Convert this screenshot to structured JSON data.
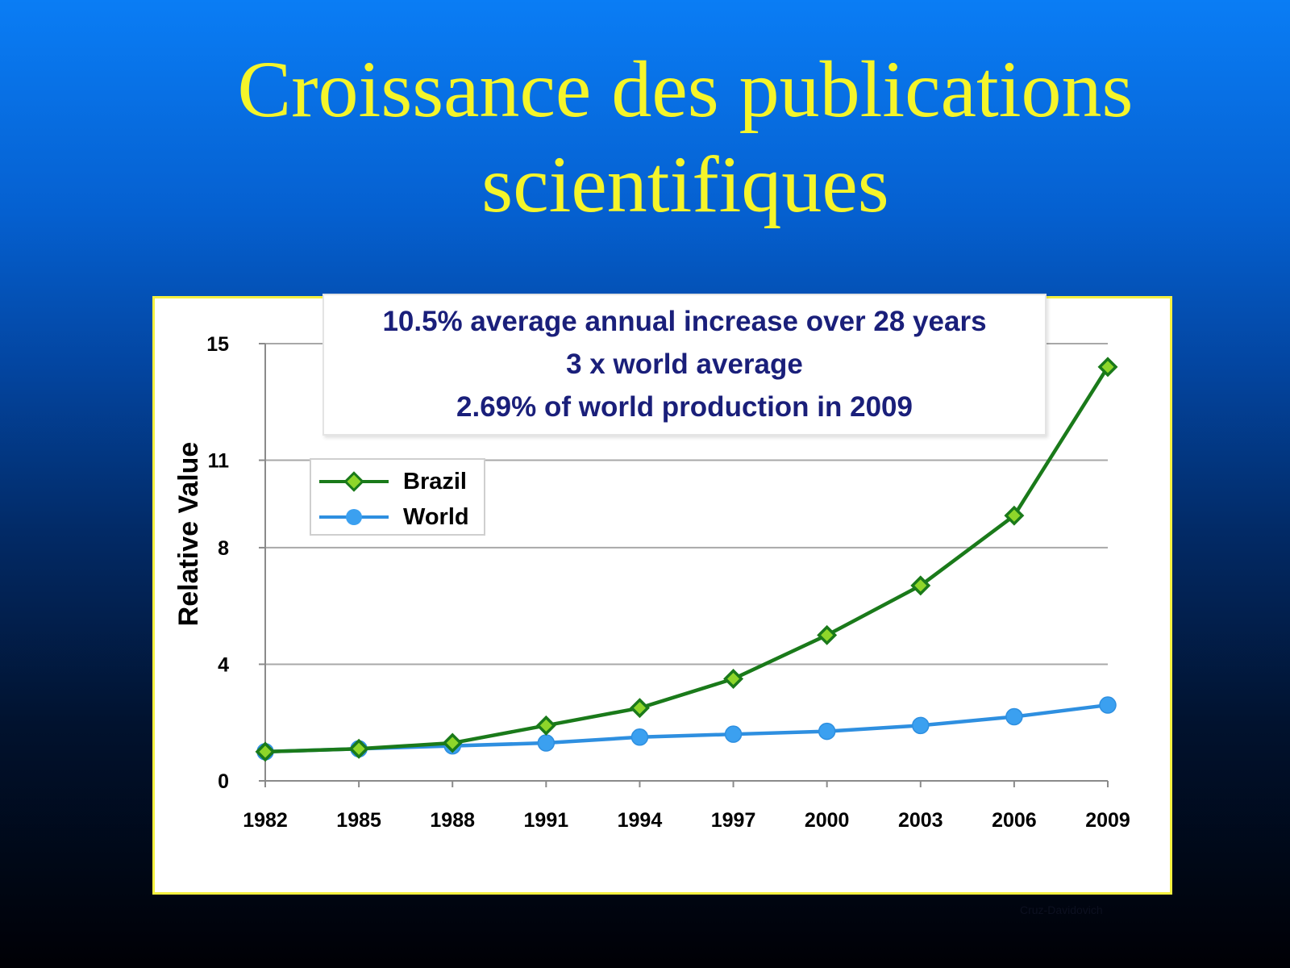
{
  "slide": {
    "title_line1": "Croissance des publications",
    "title_line2": "scientifiques",
    "credit": "Cruz-Davidovich"
  },
  "annotation": {
    "line1": "10.5% average annual increase over 28 years",
    "line2": "3 x world average",
    "line3": "2.69% of world production in 2009"
  },
  "colors": {
    "brazil_line": "#1a7a1a",
    "brazil_marker": "#8ed62a",
    "world_line": "#2e8fe0",
    "world_marker": "#3ba0f0",
    "title": "#f5f52a",
    "annotation_text": "#1a1f7a"
  },
  "chart_data": {
    "type": "line",
    "ylabel": "Relative Value",
    "xlabel": "",
    "categories": [
      "1982",
      "1985",
      "1988",
      "1991",
      "1994",
      "1997",
      "2000",
      "2003",
      "2006",
      "2009"
    ],
    "yticks": [
      0,
      4,
      8,
      11,
      15
    ],
    "ylim": [
      0,
      15
    ],
    "grid": "horizontal",
    "legend_position": "upper-left",
    "series": [
      {
        "name": "Brazil",
        "marker": "diamond",
        "values": [
          1.0,
          1.1,
          1.3,
          1.9,
          2.5,
          3.5,
          5.0,
          6.7,
          9.1,
          14.2
        ]
      },
      {
        "name": "World",
        "marker": "circle",
        "values": [
          1.0,
          1.1,
          1.2,
          1.3,
          1.5,
          1.6,
          1.7,
          1.9,
          2.2,
          2.6
        ]
      }
    ]
  }
}
